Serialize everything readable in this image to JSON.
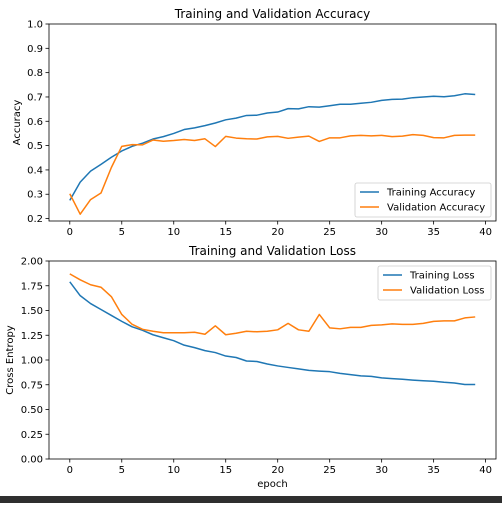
{
  "chart_data": [
    {
      "type": "line",
      "title": "Training and Validation Accuracy",
      "xlabel": "",
      "ylabel": "Accuracy",
      "xlim": [
        -2,
        41
      ],
      "ylim": [
        0.19,
        1.0
      ],
      "xticks": [
        0,
        5,
        10,
        15,
        20,
        25,
        30,
        35,
        40
      ],
      "yticks": [
        0.2,
        0.3,
        0.4,
        0.5,
        0.6,
        0.7,
        0.8,
        0.9,
        1.0
      ],
      "ytick_decimals": 1,
      "grid": false,
      "legend": "lower-right",
      "x": [
        0,
        1,
        2,
        3,
        4,
        5,
        6,
        7,
        8,
        9,
        10,
        11,
        12,
        13,
        14,
        15,
        16,
        17,
        18,
        19,
        20,
        21,
        22,
        23,
        24,
        25,
        26,
        27,
        28,
        29,
        30,
        31,
        32,
        33,
        34,
        35,
        36,
        37,
        38,
        39
      ],
      "series": [
        {
          "name": "Training Accuracy",
          "color": "#1f77b4",
          "values": [
            0.275,
            0.35,
            0.395,
            0.423,
            0.452,
            0.478,
            0.497,
            0.51,
            0.527,
            0.537,
            0.55,
            0.566,
            0.573,
            0.582,
            0.593,
            0.606,
            0.613,
            0.624,
            0.625,
            0.634,
            0.638,
            0.652,
            0.651,
            0.66,
            0.658,
            0.664,
            0.67,
            0.67,
            0.674,
            0.678,
            0.686,
            0.69,
            0.691,
            0.697,
            0.7,
            0.703,
            0.701,
            0.705,
            0.713,
            0.71
          ]
        },
        {
          "name": "Validation Accuracy",
          "color": "#ff7f0e",
          "values": [
            0.302,
            0.218,
            0.278,
            0.305,
            0.41,
            0.497,
            0.504,
            0.503,
            0.523,
            0.518,
            0.521,
            0.525,
            0.521,
            0.528,
            0.496,
            0.538,
            0.531,
            0.528,
            0.527,
            0.536,
            0.538,
            0.53,
            0.535,
            0.539,
            0.517,
            0.532,
            0.532,
            0.54,
            0.542,
            0.54,
            0.542,
            0.537,
            0.539,
            0.545,
            0.542,
            0.533,
            0.532,
            0.542,
            0.543,
            0.543
          ]
        }
      ]
    },
    {
      "type": "line",
      "title": "Training and Validation Loss",
      "xlabel": "epoch",
      "ylabel": "Cross Entropy",
      "xlim": [
        -2,
        41
      ],
      "ylim": [
        0,
        2.0
      ],
      "xticks": [
        0,
        5,
        10,
        15,
        20,
        25,
        30,
        35,
        40
      ],
      "yticks": [
        0.0,
        0.25,
        0.5,
        0.75,
        1.0,
        1.25,
        1.5,
        1.75,
        2.0
      ],
      "ytick_decimals": 2,
      "grid": false,
      "legend": "upper-right",
      "x": [
        0,
        1,
        2,
        3,
        4,
        5,
        6,
        7,
        8,
        9,
        10,
        11,
        12,
        13,
        14,
        15,
        16,
        17,
        18,
        19,
        20,
        21,
        22,
        23,
        24,
        25,
        26,
        27,
        28,
        29,
        30,
        31,
        32,
        33,
        34,
        35,
        36,
        37,
        38,
        39
      ],
      "series": [
        {
          "name": "Training Loss",
          "color": "#1f77b4",
          "values": [
            1.79,
            1.65,
            1.57,
            1.51,
            1.45,
            1.39,
            1.335,
            1.3,
            1.255,
            1.225,
            1.195,
            1.15,
            1.125,
            1.095,
            1.075,
            1.04,
            1.025,
            0.99,
            0.985,
            0.96,
            0.94,
            0.925,
            0.91,
            0.895,
            0.888,
            0.882,
            0.865,
            0.852,
            0.84,
            0.835,
            0.82,
            0.812,
            0.806,
            0.797,
            0.79,
            0.785,
            0.775,
            0.768,
            0.752,
            0.752
          ]
        },
        {
          "name": "Validation Loss",
          "color": "#ff7f0e",
          "values": [
            1.87,
            1.81,
            1.76,
            1.735,
            1.64,
            1.46,
            1.36,
            1.31,
            1.29,
            1.275,
            1.275,
            1.275,
            1.28,
            1.26,
            1.345,
            1.255,
            1.27,
            1.29,
            1.285,
            1.29,
            1.305,
            1.37,
            1.305,
            1.29,
            1.46,
            1.325,
            1.315,
            1.33,
            1.33,
            1.35,
            1.355,
            1.365,
            1.36,
            1.36,
            1.37,
            1.39,
            1.395,
            1.395,
            1.425,
            1.435
          ]
        }
      ]
    }
  ]
}
